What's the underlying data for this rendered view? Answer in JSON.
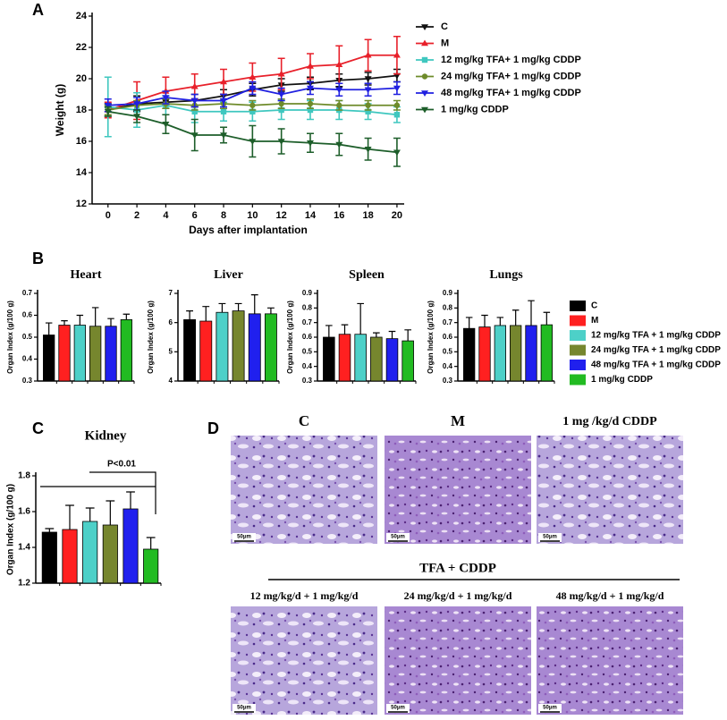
{
  "chart_data": [
    {
      "type": "line",
      "panel": "A",
      "xlabel": "Days after implantation",
      "ylabel": "Weight (g)",
      "x": [
        0,
        2,
        4,
        6,
        8,
        10,
        12,
        14,
        16,
        18,
        20
      ],
      "xlim": [
        -1.1,
        20.5
      ],
      "xticks": [
        0,
        2,
        4,
        6,
        8,
        10,
        12,
        14,
        16,
        18,
        20
      ],
      "ylim": [
        12,
        24
      ],
      "yticks": [
        12,
        14,
        16,
        18,
        20,
        22,
        24
      ],
      "legend": "right",
      "series": [
        {
          "name": "C",
          "color": "#111111",
          "marker": "triangle-down",
          "values": [
            18.0,
            18.4,
            18.5,
            18.6,
            18.9,
            19.3,
            19.6,
            19.7,
            19.9,
            20.0,
            20.2
          ],
          "errors": [
            0.4,
            0.5,
            0.4,
            0.4,
            0.4,
            0.4,
            0.4,
            0.4,
            0.4,
            0.4,
            0.4
          ]
        },
        {
          "name": "M",
          "color": "#e8202a",
          "marker": "triangle-up",
          "values": [
            18.0,
            18.6,
            19.2,
            19.5,
            19.8,
            20.1,
            20.3,
            20.8,
            20.9,
            21.5,
            21.5
          ],
          "errors": [
            0.5,
            1.2,
            0.9,
            0.8,
            0.8,
            0.9,
            1.0,
            0.8,
            1.2,
            1.0,
            1.2
          ]
        },
        {
          "name": "12 mg/kg TFA+ 1 mg/kg CDDP",
          "color": "#3fc7bf",
          "marker": "square",
          "values": [
            18.2,
            18.0,
            18.3,
            17.9,
            17.9,
            17.9,
            18.0,
            18.0,
            18.0,
            17.9,
            17.7
          ],
          "errors": [
            1.9,
            1.1,
            0.6,
            0.7,
            0.6,
            0.6,
            0.6,
            0.6,
            0.6,
            0.5,
            0.5
          ]
        },
        {
          "name": "24 mg/kg TFA+ 1 mg/kg CDDP",
          "color": "#6e8b2a",
          "marker": "circle",
          "values": [
            18.0,
            18.3,
            18.4,
            18.3,
            18.4,
            18.3,
            18.4,
            18.4,
            18.3,
            18.3,
            18.3
          ],
          "errors": [
            0.3,
            0.3,
            0.3,
            0.3,
            0.3,
            0.3,
            0.3,
            0.3,
            0.3,
            0.3,
            0.3
          ]
        },
        {
          "name": "48 mg/kg TFA+ 1 mg/kg CDDP",
          "color": "#2020e0",
          "marker": "triangle-down",
          "values": [
            18.3,
            18.4,
            18.8,
            18.6,
            18.6,
            19.4,
            19.0,
            19.4,
            19.3,
            19.3,
            19.4
          ],
          "errors": [
            0.4,
            0.4,
            0.4,
            0.4,
            0.4,
            0.4,
            0.4,
            0.4,
            0.4,
            0.4,
            0.4
          ]
        },
        {
          "name": "1 mg/kg CDDP",
          "color": "#1d5e2a",
          "marker": "triangle-down",
          "values": [
            17.9,
            17.6,
            17.1,
            16.4,
            16.4,
            16.0,
            16.0,
            15.9,
            15.8,
            15.5,
            15.3
          ],
          "errors": [
            0.3,
            0.4,
            0.6,
            1.0,
            0.5,
            1.0,
            0.8,
            0.6,
            0.7,
            0.7,
            0.9
          ]
        }
      ]
    },
    {
      "type": "bar",
      "panel": "B",
      "title": "Heart",
      "ylabel": "Organ Index (g/100 g)",
      "ylim": [
        0.3,
        0.7
      ],
      "yticks": [
        0.3,
        0.4,
        0.5,
        0.6,
        0.7
      ],
      "values": [
        0.51,
        0.555,
        0.555,
        0.55,
        0.55,
        0.58
      ],
      "errors": [
        0.055,
        0.02,
        0.045,
        0.085,
        0.035,
        0.025
      ],
      "colors": [
        "#000000",
        "#ff2020",
        "#4dd0c8",
        "#76862e",
        "#2020ee",
        "#22bb22"
      ]
    },
    {
      "type": "bar",
      "title": "Liver",
      "ylabel": "Organ Index (g/100 g)",
      "ylim": [
        4,
        7
      ],
      "yticks": [
        4,
        5,
        6,
        7
      ],
      "values": [
        6.1,
        6.05,
        6.35,
        6.4,
        6.3,
        6.3
      ],
      "errors": [
        0.3,
        0.5,
        0.3,
        0.25,
        0.65,
        0.2
      ],
      "colors": [
        "#000000",
        "#ff2020",
        "#4dd0c8",
        "#76862e",
        "#2020ee",
        "#22bb22"
      ]
    },
    {
      "type": "bar",
      "title": "Spleen",
      "ylabel": "Organ Index (g/100 g)",
      "ylim": [
        0.3,
        0.9
      ],
      "yticks": [
        0.3,
        0.4,
        0.5,
        0.6,
        0.7,
        0.8,
        0.9
      ],
      "values": [
        0.6,
        0.62,
        0.62,
        0.6,
        0.59,
        0.575
      ],
      "errors": [
        0.08,
        0.065,
        0.21,
        0.03,
        0.05,
        0.075
      ],
      "colors": [
        "#000000",
        "#ff2020",
        "#4dd0c8",
        "#76862e",
        "#2020ee",
        "#22bb22"
      ]
    },
    {
      "type": "bar",
      "title": "Lungs",
      "ylabel": "Organ Index (g/100 g)",
      "ylim": [
        0.3,
        0.9
      ],
      "yticks": [
        0.3,
        0.4,
        0.5,
        0.6,
        0.7,
        0.8,
        0.9
      ],
      "values": [
        0.66,
        0.67,
        0.68,
        0.68,
        0.68,
        0.685
      ],
      "errors": [
        0.075,
        0.08,
        0.055,
        0.105,
        0.17,
        0.085
      ],
      "colors": [
        "#000000",
        "#ff2020",
        "#4dd0c8",
        "#76862e",
        "#2020ee",
        "#22bb22"
      ]
    },
    {
      "type": "bar",
      "panel": "C",
      "title": "Kidney",
      "ylabel": "Organ Index (g/100 g)",
      "ylim": [
        1.2,
        1.8
      ],
      "yticks": [
        1.2,
        1.4,
        1.6,
        1.8
      ],
      "values": [
        1.485,
        1.5,
        1.545,
        1.525,
        1.615,
        1.39
      ],
      "errors": [
        0.02,
        0.135,
        0.075,
        0.135,
        0.095,
        0.065
      ],
      "colors": [
        "#000000",
        "#ff2020",
        "#4dd0c8",
        "#76862e",
        "#2020ee",
        "#22bb22"
      ],
      "annotation": "P<0.01"
    }
  ],
  "legend_b": {
    "labels": [
      "C",
      "M",
      "12 mg/kg TFA + 1 mg/kg CDDP",
      "24 mg/kg TFA + 1 mg/kg CDDP",
      "48 mg/kg TFA + 1 mg/kg CDDP",
      "1 mg/kg CDDP"
    ],
    "colors": [
      "#000000",
      "#ff2020",
      "#4dd0c8",
      "#76862e",
      "#2020ee",
      "#22bb22"
    ]
  },
  "panel_d": {
    "label": "D",
    "group_title": "TFA + CDDP",
    "images": [
      {
        "title": "C",
        "scale": "50μm"
      },
      {
        "title": "M",
        "scale": "50μm"
      },
      {
        "title": "1 mg /kg/d CDDP",
        "scale": "50μm"
      },
      {
        "title": "12 mg/kg/d + 1 mg/kg/d",
        "scale": "50μm"
      },
      {
        "title": "24 mg/kg/d + 1 mg/kg/d",
        "scale": "50μm"
      },
      {
        "title": "48 mg/kg/d + 1 mg/kg/d",
        "scale": "50μm"
      }
    ]
  }
}
